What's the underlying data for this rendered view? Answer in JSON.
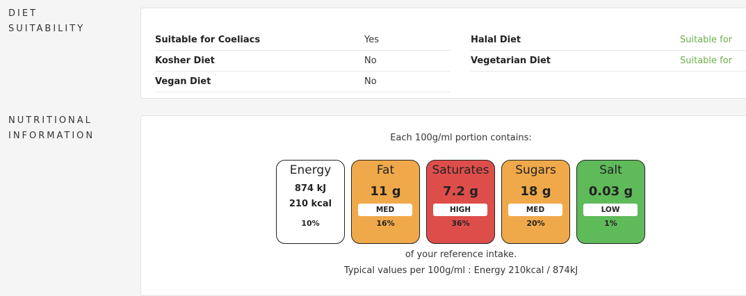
{
  "diet": {
    "label_line1": "DIET",
    "label_line2": "SUITABILITY",
    "left": [
      {
        "name": "Suitable for Coeliacs",
        "value": "Yes"
      },
      {
        "name": "Kosher Diet",
        "value": "No"
      },
      {
        "name": "Vegan Diet",
        "value": "No"
      }
    ],
    "right": [
      {
        "name": "Halal Diet",
        "value": "Suitable for"
      },
      {
        "name": "Vegetarian Diet",
        "value": "Suitable for"
      }
    ],
    "suitable_color": "#6ab04c"
  },
  "nutrition": {
    "label_line1": "NUTRITIONAL",
    "label_line2": "INFORMATION",
    "intro": "Each 100g/ml portion contains:",
    "energy": {
      "name": "Energy",
      "kj": "874 kJ",
      "kcal": "210 kcal",
      "percent": "10%"
    },
    "lights": [
      {
        "name": "Fat",
        "value": "11 g",
        "band": "MED",
        "percent": "16%",
        "color": "#f0a94a"
      },
      {
        "name": "Saturates",
        "value": "7.2 g",
        "band": "HIGH",
        "percent": "36%",
        "color": "#dd4e4b"
      },
      {
        "name": "Sugars",
        "value": "18 g",
        "band": "MED",
        "percent": "20%",
        "color": "#f0a94a"
      },
      {
        "name": "Salt",
        "value": "0.03 g",
        "band": "LOW",
        "percent": "1%",
        "color": "#5fba5a"
      }
    ],
    "reference_text": "of your reference intake.",
    "typical_text": "Typical values per 100g/ml : Energy 210kcal / 874kJ"
  }
}
